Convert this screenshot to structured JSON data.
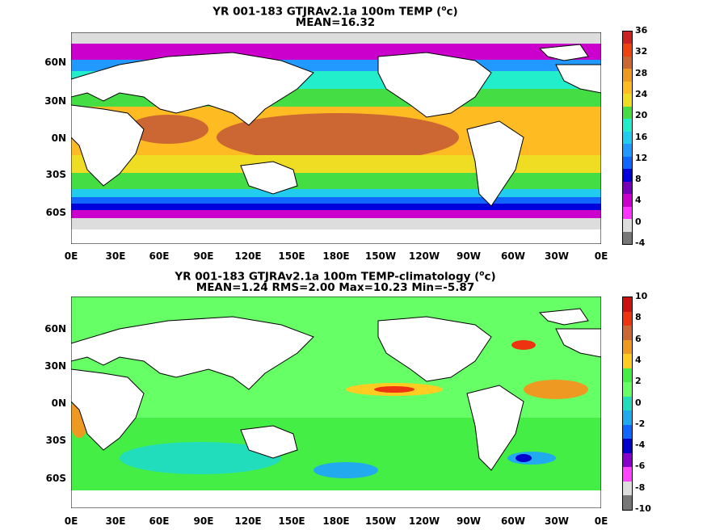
{
  "top_panel": {
    "title_line1_pre": "YR 001-183 GTJRAv2.1a 100m TEMP (",
    "title_sup": "o",
    "title_line1_post": "c)",
    "title_line2": "MEAN=16.32",
    "colorbar_labels": [
      "36",
      "32",
      "28",
      "24",
      "20",
      "16",
      "12",
      "8",
      "4",
      "0",
      "-4"
    ],
    "colorbar_colors": [
      "#cc2222",
      "#ee4411",
      "#cc6633",
      "#ee9922",
      "#ffbb22",
      "#eedd22",
      "#44dd44",
      "#22eecc",
      "#22ccee",
      "#2299ff",
      "#1166ff",
      "#0000dd",
      "#7700bb",
      "#cc00cc",
      "#ff33ff",
      "#dddddd",
      "#777777"
    ]
  },
  "bottom_panel": {
    "title_line1_pre": "YR 001-183 GTJRAv2.1a 100m TEMP-climatology (",
    "title_sup": "o",
    "title_line1_post": "c)",
    "title_line2": "MEAN=1.24   RMS=2.00   Max=10.23   Min=-5.87",
    "colorbar_labels": [
      "10",
      "8",
      "6",
      "4",
      "2",
      "0",
      "-2",
      "-4",
      "-6",
      "-8",
      "-10"
    ],
    "colorbar_colors": [
      "#cc1111",
      "#ee3311",
      "#cc6633",
      "#ee9922",
      "#ffcc22",
      "#44ee44",
      "#66ff66",
      "#22ddbb",
      "#22aaee",
      "#1166ff",
      "#0000cc",
      "#8800cc",
      "#ff44ff",
      "#dddddd",
      "#777777"
    ]
  },
  "axes": {
    "lat_labels": [
      "60N",
      "30N",
      "0N",
      "30S",
      "60S"
    ],
    "lon_labels": [
      "0E",
      "30E",
      "60E",
      "90E",
      "120E",
      "150E",
      "180E",
      "150W",
      "120W",
      "90W",
      "60W",
      "30W",
      "0E"
    ]
  }
}
